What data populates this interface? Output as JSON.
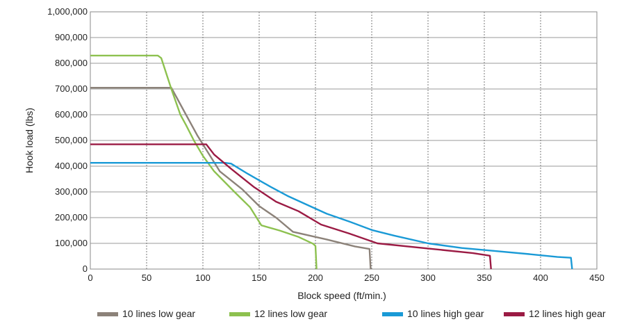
{
  "chart_data": {
    "type": "line",
    "xlabel": "Block speed (ft/min.)",
    "ylabel": "Hook load (lbs)",
    "xlim": [
      0,
      450
    ],
    "ylim": [
      0,
      1000000
    ],
    "x_ticks": [
      "0",
      "50",
      "100",
      "150",
      "200",
      "250",
      "300",
      "350",
      "400",
      "450"
    ],
    "y_ticks": [
      "0",
      "100,000",
      "200,000",
      "300,000",
      "400,000",
      "500,000",
      "600,000",
      "700,000",
      "800,000",
      "900,000",
      "1,000,000"
    ],
    "grid": {
      "x": "dotted",
      "y": "solid"
    },
    "legend_position": "bottom",
    "series": [
      {
        "name": "10 lines low gear",
        "color": "#8c8279",
        "points": [
          [
            0,
            705000
          ],
          [
            72,
            705000
          ],
          [
            85,
            600000
          ],
          [
            95,
            520000
          ],
          [
            105,
            450000
          ],
          [
            115,
            380000
          ],
          [
            135,
            310000
          ],
          [
            150,
            245000
          ],
          [
            165,
            200000
          ],
          [
            180,
            145000
          ],
          [
            210,
            115000
          ],
          [
            235,
            88000
          ],
          [
            248,
            78000
          ],
          [
            249,
            0
          ]
        ]
      },
      {
        "name": "12 lines low gear",
        "color": "#8dc14f",
        "points": [
          [
            0,
            830000
          ],
          [
            60,
            830000
          ],
          [
            63,
            820000
          ],
          [
            72,
            700000
          ],
          [
            80,
            600000
          ],
          [
            85,
            560000
          ],
          [
            92,
            500000
          ],
          [
            100,
            440000
          ],
          [
            110,
            380000
          ],
          [
            128,
            300000
          ],
          [
            142,
            240000
          ],
          [
            152,
            170000
          ],
          [
            168,
            150000
          ],
          [
            185,
            125000
          ],
          [
            198,
            98000
          ],
          [
            200,
            90000
          ],
          [
            201,
            0
          ]
        ]
      },
      {
        "name": "10 lines high gear",
        "color": "#1a9ad6",
        "points": [
          [
            0,
            413000
          ],
          [
            120,
            413000
          ],
          [
            125,
            410000
          ],
          [
            140,
            370000
          ],
          [
            160,
            320000
          ],
          [
            175,
            285000
          ],
          [
            195,
            245000
          ],
          [
            210,
            215000
          ],
          [
            230,
            185000
          ],
          [
            250,
            152000
          ],
          [
            270,
            130000
          ],
          [
            300,
            100000
          ],
          [
            330,
            82000
          ],
          [
            360,
            70000
          ],
          [
            390,
            58000
          ],
          [
            415,
            47000
          ],
          [
            427,
            44000
          ],
          [
            428,
            0
          ]
        ]
      },
      {
        "name": "12 lines high gear",
        "color": "#9b1b44",
        "points": [
          [
            0,
            485000
          ],
          [
            103,
            485000
          ],
          [
            110,
            445000
          ],
          [
            125,
            390000
          ],
          [
            145,
            320000
          ],
          [
            165,
            262000
          ],
          [
            185,
            225000
          ],
          [
            205,
            173000
          ],
          [
            230,
            138000
          ],
          [
            255,
            100000
          ],
          [
            300,
            80000
          ],
          [
            340,
            62000
          ],
          [
            355,
            52000
          ],
          [
            356,
            0
          ]
        ]
      }
    ]
  }
}
